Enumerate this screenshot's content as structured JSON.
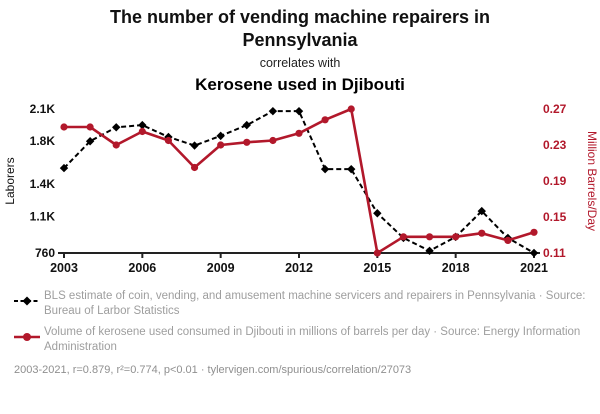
{
  "header": {
    "title": "The number of vending machine repairers in Pennsylvania",
    "subtitle": "correlates with",
    "secondary_title": "Kerosene used in Djibouti"
  },
  "colors": {
    "accent_red": "#b2182b",
    "black_series": "#000000",
    "axis": "#222222",
    "legend_gray": "#9e9e9e",
    "footer_gray": "#8f8f8f"
  },
  "chart_data": {
    "type": "line",
    "x": [
      2003,
      2004,
      2005,
      2006,
      2007,
      2008,
      2009,
      2010,
      2011,
      2012,
      2013,
      2014,
      2015,
      2016,
      2017,
      2018,
      2019,
      2020,
      2021
    ],
    "x_tick_labels": [
      "2003",
      "2006",
      "2009",
      "2012",
      "2015",
      "2018",
      "2021"
    ],
    "x_tick_values": [
      2003,
      2006,
      2009,
      2012,
      2015,
      2018,
      2021
    ],
    "left_axis": {
      "label": "Laborers",
      "range": [
        760,
        2100
      ],
      "tick_values": [
        2100,
        1800,
        1400,
        1100,
        760
      ],
      "tick_labels": [
        "2.1K",
        "1.8K",
        "1.4K",
        "1.1K",
        "760"
      ]
    },
    "right_axis": {
      "label": "Million Barrels/Day",
      "range": [
        0.11,
        0.27
      ],
      "tick_values": [
        0.27,
        0.23,
        0.19,
        0.15,
        0.11
      ],
      "tick_labels": [
        "0.27",
        "0.23",
        "0.19",
        "0.15",
        "0.11"
      ]
    },
    "series": [
      {
        "name": "BLS estimate of coin, vending, and amusement machine servicers and repairers in Pennsylvania",
        "axis": "left",
        "color": "#000000",
        "style": "dashed-diamond",
        "values": [
          1550,
          1800,
          1930,
          1950,
          1840,
          1760,
          1850,
          1950,
          2080,
          2080,
          1540,
          1540,
          1130,
          900,
          780,
          910,
          1150,
          900,
          760
        ]
      },
      {
        "name": "Volume of kerosene used consumed in Djibouti in millions of barrels per day",
        "axis": "right",
        "color": "#b2182b",
        "style": "solid-circle",
        "values": [
          0.25,
          0.25,
          0.23,
          0.245,
          0.235,
          0.205,
          0.23,
          0.233,
          0.235,
          0.243,
          0.258,
          0.27,
          0.11,
          0.128,
          0.128,
          0.128,
          0.132,
          0.124,
          0.133
        ]
      }
    ]
  },
  "legend": [
    {
      "text": "BLS estimate of coin, vending, and amusement machine servicers and repairers in Pennsylvania · Source: Bureau of Larbor Statistics"
    },
    {
      "text": "Volume of kerosene used consumed in Djibouti in millions of barrels per day · Source: Energy Information Administration"
    }
  ],
  "footer": "2003-2021, r=0.879, r²=0.774, p<0.01 · tylervigen.com/spurious/correlation/27073"
}
